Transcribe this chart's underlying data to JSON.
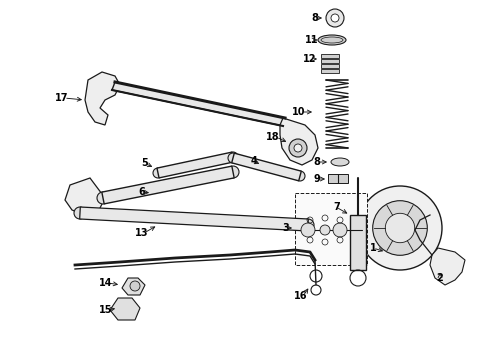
{
  "background_color": "#ffffff",
  "fig_width": 4.9,
  "fig_height": 3.6,
  "dpi": 100,
  "line_color": "#1a1a1a",
  "label_color": "#000000",
  "label_fontsize": 7.0
}
